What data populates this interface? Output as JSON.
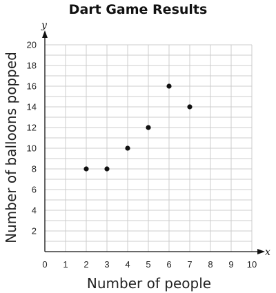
{
  "chart_data": {
    "type": "scatter",
    "title": "Dart Game Results",
    "xlabel": "Number of people",
    "ylabel": "Number of balloons popped",
    "x_axis_var": "x",
    "y_axis_var": "y",
    "xlim": [
      0,
      10
    ],
    "ylim": [
      0,
      20
    ],
    "x_ticks": [
      0,
      1,
      2,
      3,
      4,
      5,
      6,
      7,
      8,
      9,
      10
    ],
    "y_ticks": [
      2,
      4,
      6,
      8,
      10,
      12,
      14,
      16,
      18,
      20
    ],
    "grid": true,
    "points": [
      {
        "x": 2,
        "y": 8
      },
      {
        "x": 3,
        "y": 8
      },
      {
        "x": 4,
        "y": 10
      },
      {
        "x": 5,
        "y": 12
      },
      {
        "x": 6,
        "y": 16
      },
      {
        "x": 7,
        "y": 14
      }
    ],
    "colors": {
      "point": "#111111",
      "grid": "#cccccc",
      "axis": "#111111"
    }
  }
}
